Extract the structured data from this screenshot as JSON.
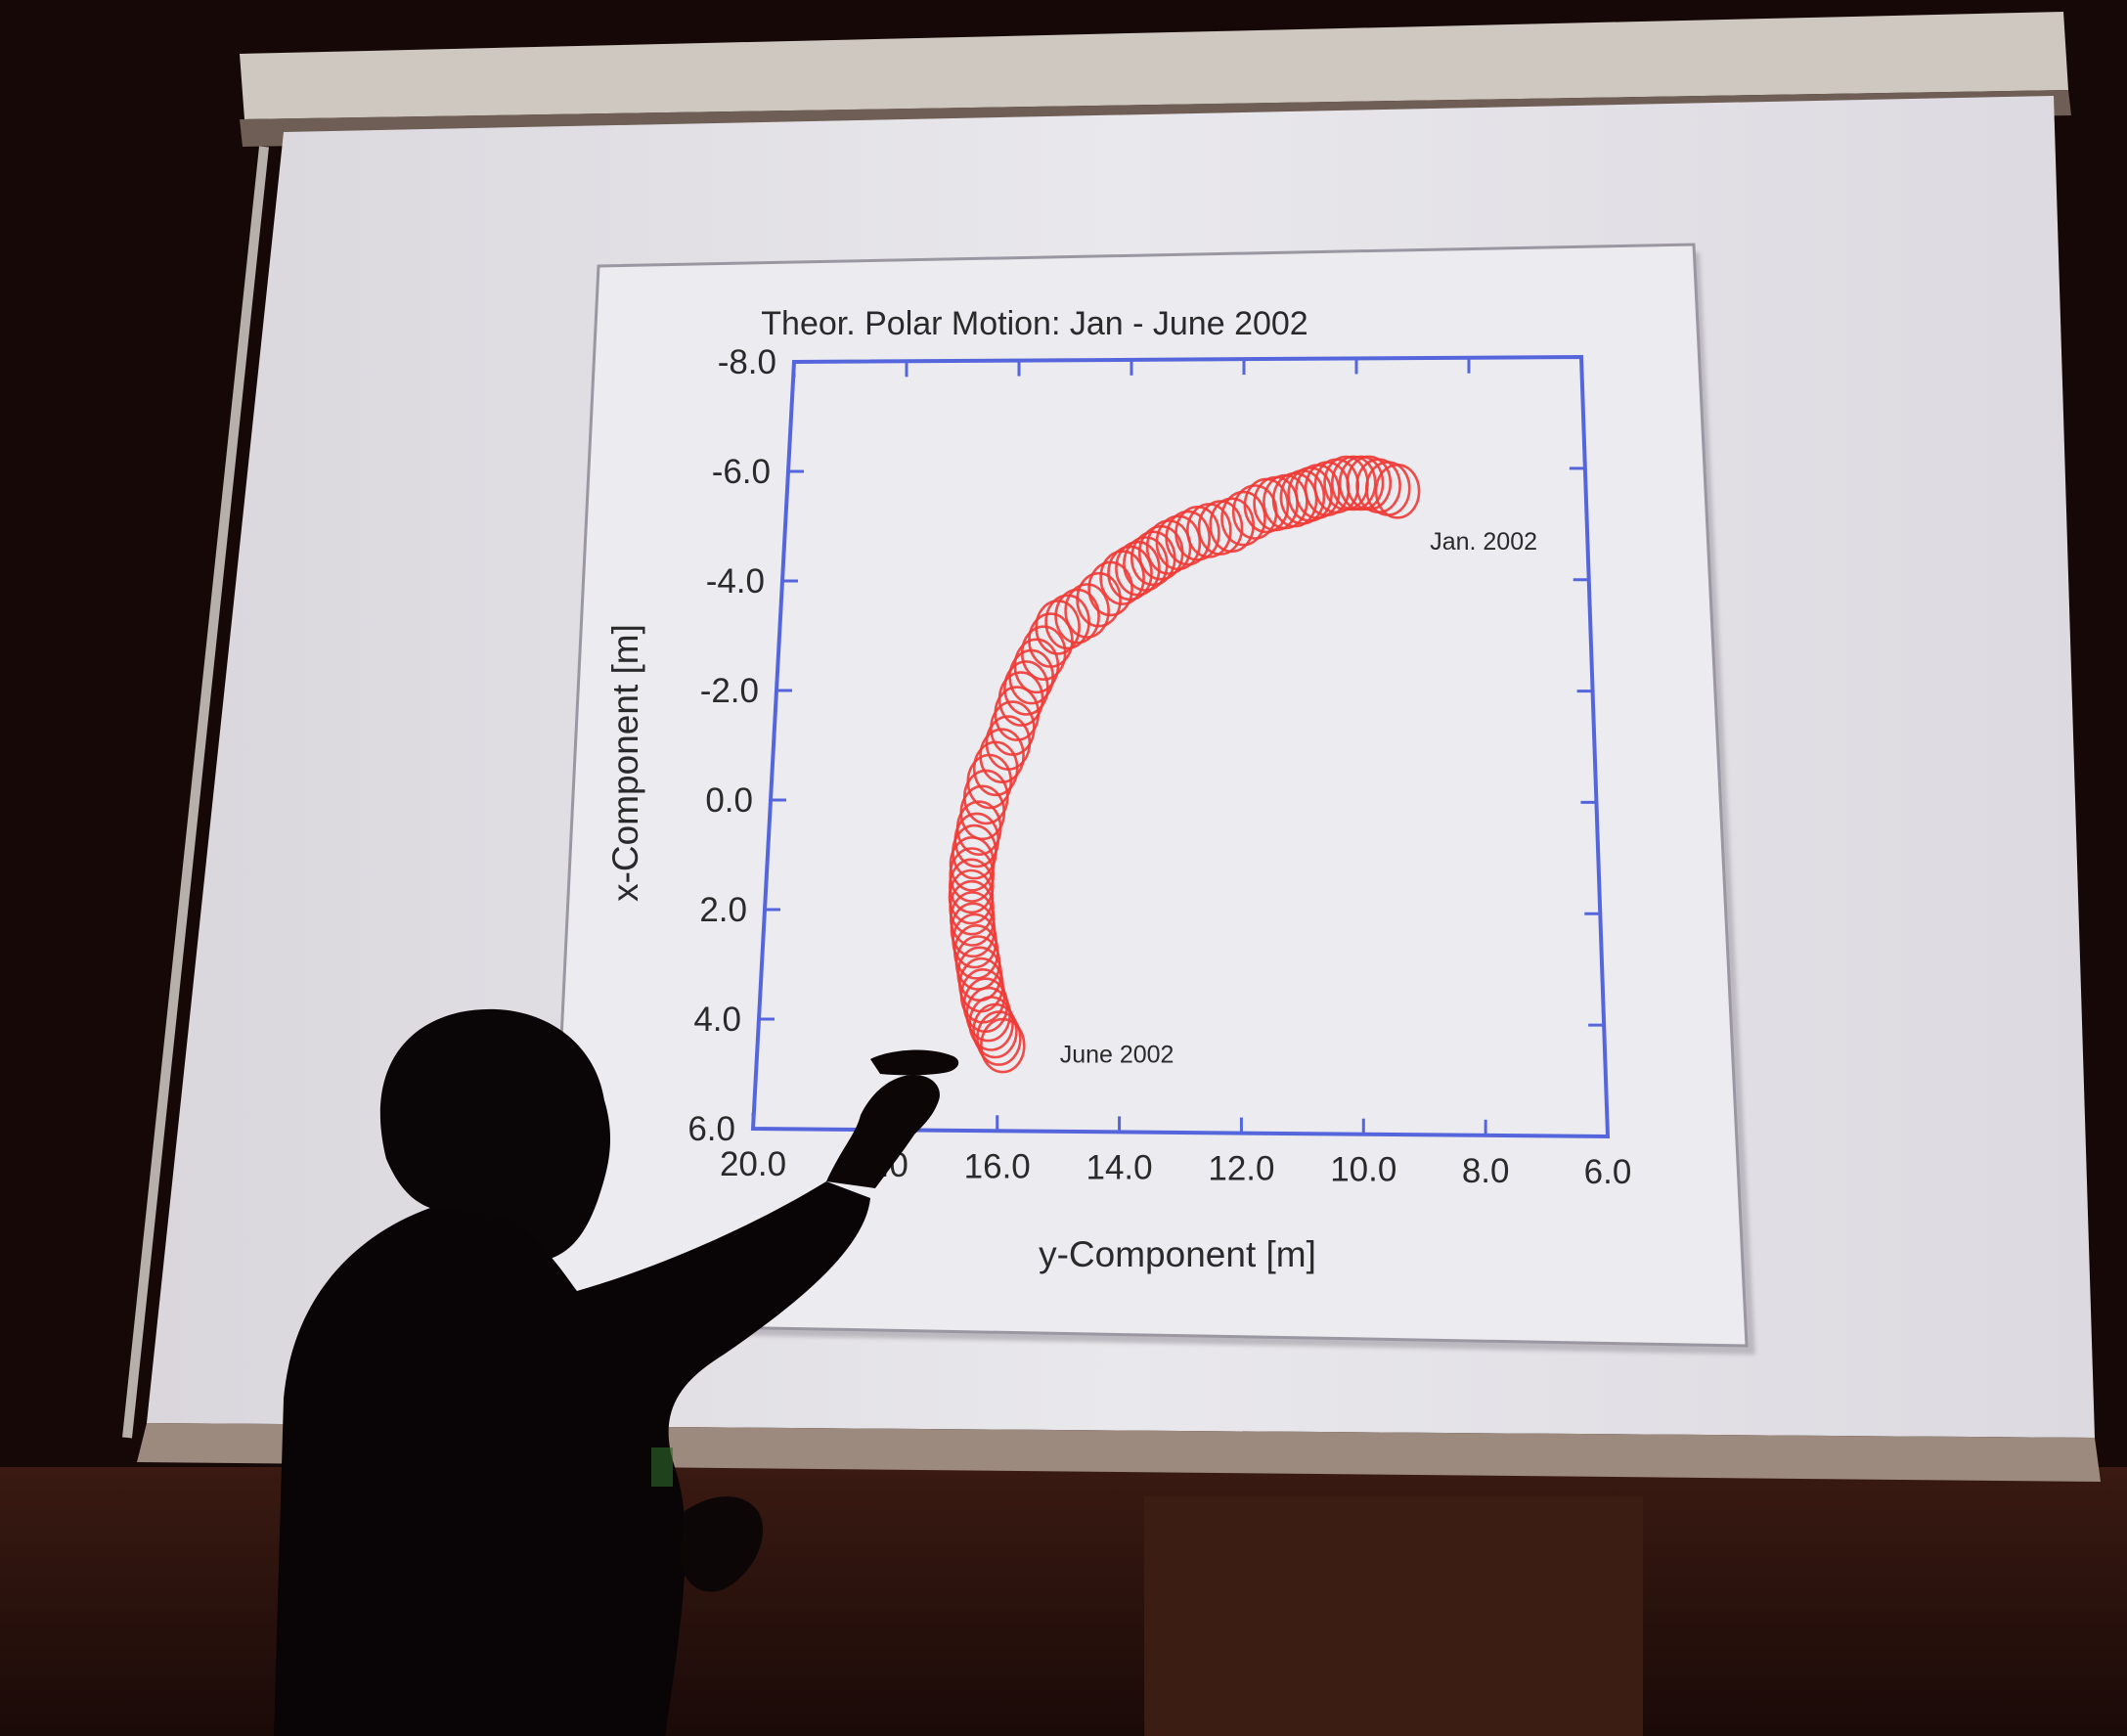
{
  "colors": {
    "room": "#140707",
    "screen": "#e4e2e7",
    "slide_panel": "#ecebef",
    "axes_frame": "#5566dd",
    "series": "#f03a35",
    "text": "#2a2a2a",
    "presenter": "#0a0506"
  },
  "chart_data": {
    "type": "scatter",
    "title": "Theor. Polar Motion: Jan - June 2002",
    "xlabel": "y-Component [m]",
    "ylabel": "x-Component [m]",
    "xlim": [
      20.0,
      6.0
    ],
    "ylim": [
      6.0,
      -8.0
    ],
    "x_reversed": true,
    "y_reversed": true,
    "grid": false,
    "xticks": [
      {
        "value": 20.0,
        "label": "20.0"
      },
      {
        "value": 18.0,
        "label": "18.0"
      },
      {
        "value": 16.0,
        "label": "16.0"
      },
      {
        "value": 14.0,
        "label": "14.0"
      },
      {
        "value": 12.0,
        "label": "12.0"
      },
      {
        "value": 10.0,
        "label": "10.0"
      },
      {
        "value": 8.0,
        "label": "8.0"
      },
      {
        "value": 6.0,
        "label": "6.0"
      }
    ],
    "yticks": [
      {
        "value": -8.0,
        "label": "-8.0"
      },
      {
        "value": -6.0,
        "label": "-6.0"
      },
      {
        "value": -4.0,
        "label": "-4.0"
      },
      {
        "value": -2.0,
        "label": "-2.0"
      },
      {
        "value": 0.0,
        "label": "0.0"
      },
      {
        "value": 2.0,
        "label": "2.0"
      },
      {
        "value": 4.0,
        "label": "4.0"
      },
      {
        "value": 6.0,
        "label": "6.0"
      }
    ],
    "marker": "open-circle",
    "path": [
      {
        "y": 9.3,
        "x": -5.6
      },
      {
        "y": 9.8,
        "x": -5.75
      },
      {
        "y": 10.2,
        "x": -5.75
      },
      {
        "y": 10.7,
        "x": -5.6
      },
      {
        "y": 11.1,
        "x": -5.45
      },
      {
        "y": 11.6,
        "x": -5.35
      },
      {
        "y": 12.2,
        "x": -5.0
      },
      {
        "y": 12.8,
        "x": -4.85
      },
      {
        "y": 13.3,
        "x": -4.6
      },
      {
        "y": 13.7,
        "x": -4.3
      },
      {
        "y": 14.1,
        "x": -4.05
      },
      {
        "y": 14.7,
        "x": -3.45
      },
      {
        "y": 15.2,
        "x": -3.15
      },
      {
        "y": 15.55,
        "x": -2.45
      },
      {
        "y": 15.8,
        "x": -1.85
      },
      {
        "y": 16.0,
        "x": -1.05
      },
      {
        "y": 16.3,
        "x": -0.35
      },
      {
        "y": 16.45,
        "x": 0.5
      },
      {
        "y": 16.55,
        "x": 1.15
      },
      {
        "y": 16.55,
        "x": 1.75
      },
      {
        "y": 16.5,
        "x": 2.35
      },
      {
        "y": 16.4,
        "x": 2.95
      },
      {
        "y": 16.3,
        "x": 3.55
      },
      {
        "y": 16.15,
        "x": 4.05
      },
      {
        "y": 15.95,
        "x": 4.45
      }
    ],
    "annotations": [
      {
        "text": "Jan. 2002",
        "y": 8.75,
        "x": -4.55
      },
      {
        "text": "June 2002",
        "y": 15.0,
        "x": 4.75
      }
    ]
  }
}
